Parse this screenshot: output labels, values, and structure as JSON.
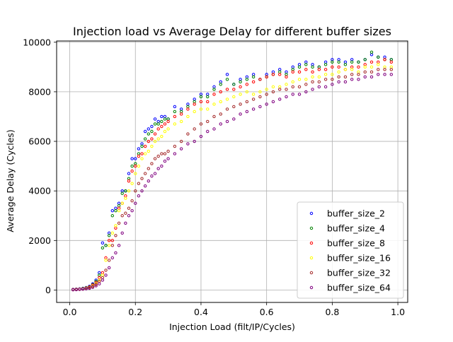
{
  "chart_data": {
    "type": "scatter",
    "title": "Injection load vs Average Delay for different buffer sizes",
    "xlabel": "Injection Load (filt/IP/Cycles)",
    "ylabel": "Average Delay (Cycles)",
    "xlim": [
      -0.04,
      1.03
    ],
    "ylim": [
      -500,
      10050
    ],
    "xticks": [
      0.0,
      0.2,
      0.4,
      0.6,
      0.8,
      1.0
    ],
    "xtick_labels": [
      "0.0",
      "0.2",
      "0.4",
      "0.6",
      "0.8",
      "1.0"
    ],
    "yticks": [
      0,
      2000,
      4000,
      6000,
      8000,
      10000
    ],
    "ytick_labels": [
      "0",
      "2000",
      "4000",
      "6000",
      "8000",
      "10000"
    ],
    "grid": true,
    "legend_position": "lower-right",
    "series": [
      {
        "name": "buffer_size_2",
        "color": "#0000ff",
        "x": [
          0.01,
          0.02,
          0.03,
          0.04,
          0.05,
          0.06,
          0.07,
          0.08,
          0.09,
          0.1,
          0.11,
          0.12,
          0.13,
          0.14,
          0.15,
          0.16,
          0.17,
          0.18,
          0.19,
          0.2,
          0.21,
          0.22,
          0.23,
          0.24,
          0.25,
          0.26,
          0.27,
          0.28,
          0.29,
          0.3,
          0.32,
          0.34,
          0.36,
          0.38,
          0.4,
          0.42,
          0.44,
          0.46,
          0.48,
          0.5,
          0.52,
          0.54,
          0.56,
          0.58,
          0.6,
          0.62,
          0.64,
          0.66,
          0.68,
          0.7,
          0.72,
          0.74,
          0.76,
          0.78,
          0.8,
          0.82,
          0.84,
          0.86,
          0.88,
          0.9,
          0.92,
          0.94,
          0.96,
          0.98
        ],
        "y": [
          30,
          40,
          50,
          70,
          100,
          150,
          250,
          400,
          700,
          1900,
          1800,
          2300,
          3200,
          3300,
          3500,
          4000,
          4000,
          4700,
          5300,
          5300,
          5700,
          5900,
          6400,
          6500,
          6600,
          6900,
          6800,
          7000,
          7000,
          6900,
          7400,
          7300,
          7500,
          7700,
          7900,
          7900,
          8200,
          8400,
          8700,
          8300,
          8500,
          8600,
          8700,
          8500,
          8700,
          8800,
          8900,
          8800,
          9000,
          9100,
          9200,
          9100,
          9000,
          9200,
          9300,
          9300,
          9200,
          9300,
          9200,
          9300,
          9500,
          9400,
          9400,
          9300
        ]
      },
      {
        "name": "buffer_size_4",
        "color": "#008000",
        "x": [
          0.01,
          0.02,
          0.03,
          0.04,
          0.05,
          0.06,
          0.07,
          0.08,
          0.09,
          0.1,
          0.11,
          0.12,
          0.13,
          0.14,
          0.15,
          0.16,
          0.17,
          0.18,
          0.19,
          0.2,
          0.21,
          0.22,
          0.23,
          0.24,
          0.25,
          0.26,
          0.27,
          0.28,
          0.29,
          0.3,
          0.32,
          0.34,
          0.36,
          0.38,
          0.4,
          0.42,
          0.44,
          0.46,
          0.48,
          0.5,
          0.52,
          0.54,
          0.56,
          0.58,
          0.6,
          0.62,
          0.64,
          0.66,
          0.68,
          0.7,
          0.72,
          0.74,
          0.76,
          0.78,
          0.8,
          0.82,
          0.84,
          0.86,
          0.88,
          0.9,
          0.92,
          0.94,
          0.96,
          0.98
        ],
        "y": [
          20,
          30,
          40,
          60,
          90,
          130,
          220,
          350,
          600,
          1700,
          1800,
          2200,
          3000,
          3200,
          3400,
          3900,
          4000,
          4500,
          5000,
          5100,
          5500,
          5800,
          6100,
          6300,
          6400,
          6700,
          6700,
          6800,
          6900,
          6900,
          7200,
          7200,
          7400,
          7600,
          7800,
          7800,
          8100,
          8300,
          8500,
          8300,
          8400,
          8500,
          8600,
          8500,
          8600,
          8700,
          8800,
          8700,
          8900,
          9000,
          9100,
          9000,
          9000,
          9100,
          9200,
          9200,
          9100,
          9200,
          9200,
          9300,
          9600,
          9400,
          9300,
          9300
        ]
      },
      {
        "name": "buffer_size_8",
        "color": "#ff0000",
        "x": [
          0.01,
          0.02,
          0.03,
          0.04,
          0.05,
          0.06,
          0.07,
          0.08,
          0.09,
          0.1,
          0.11,
          0.12,
          0.13,
          0.14,
          0.15,
          0.16,
          0.17,
          0.18,
          0.19,
          0.2,
          0.21,
          0.22,
          0.23,
          0.24,
          0.25,
          0.26,
          0.27,
          0.28,
          0.29,
          0.3,
          0.32,
          0.34,
          0.36,
          0.38,
          0.4,
          0.42,
          0.44,
          0.46,
          0.48,
          0.5,
          0.52,
          0.54,
          0.56,
          0.58,
          0.6,
          0.62,
          0.64,
          0.66,
          0.68,
          0.7,
          0.72,
          0.74,
          0.76,
          0.78,
          0.8,
          0.82,
          0.84,
          0.86,
          0.88,
          0.9,
          0.92,
          0.94,
          0.96,
          0.98
        ],
        "y": [
          20,
          30,
          40,
          50,
          80,
          120,
          200,
          300,
          500,
          700,
          1300,
          2000,
          2000,
          2500,
          3300,
          3500,
          3800,
          4400,
          4800,
          5000,
          5400,
          5500,
          5800,
          6000,
          6100,
          6300,
          6500,
          6600,
          6700,
          6800,
          7000,
          7100,
          7300,
          7500,
          7600,
          7600,
          7900,
          8000,
          8100,
          8100,
          8200,
          8300,
          8400,
          8500,
          8600,
          8700,
          8700,
          8600,
          8800,
          8800,
          8900,
          8800,
          8900,
          8900,
          9000,
          9000,
          8900,
          9000,
          9000,
          9100,
          9200,
          9200,
          9300,
          9200
        ]
      },
      {
        "name": "buffer_size_16",
        "color": "#ffff00",
        "x": [
          0.01,
          0.02,
          0.03,
          0.04,
          0.05,
          0.06,
          0.07,
          0.08,
          0.09,
          0.1,
          0.11,
          0.12,
          0.13,
          0.14,
          0.15,
          0.16,
          0.17,
          0.18,
          0.19,
          0.2,
          0.21,
          0.22,
          0.23,
          0.24,
          0.25,
          0.26,
          0.27,
          0.28,
          0.29,
          0.3,
          0.32,
          0.34,
          0.36,
          0.38,
          0.4,
          0.42,
          0.44,
          0.46,
          0.48,
          0.5,
          0.52,
          0.54,
          0.56,
          0.58,
          0.6,
          0.62,
          0.64,
          0.66,
          0.68,
          0.7,
          0.72,
          0.74,
          0.76,
          0.78,
          0.8,
          0.82,
          0.84,
          0.86,
          0.88,
          0.9,
          0.92,
          0.94,
          0.96,
          0.98
        ],
        "y": [
          20,
          25,
          35,
          45,
          70,
          100,
          160,
          250,
          400,
          600,
          1200,
          1800,
          2300,
          2600,
          3200,
          3500,
          3700,
          4000,
          4300,
          4700,
          5000,
          5300,
          5500,
          5600,
          5800,
          6000,
          6100,
          6200,
          6400,
          6500,
          6700,
          6800,
          7000,
          7200,
          7300,
          7300,
          7500,
          7600,
          7700,
          7800,
          7900,
          8000,
          7900,
          8000,
          8100,
          8200,
          8200,
          8300,
          8400,
          8500,
          8500,
          8600,
          8600,
          8700,
          8700,
          8800,
          8900,
          8900,
          8800,
          9000,
          9000,
          9100,
          9000,
          9000
        ]
      },
      {
        "name": "buffer_size_32",
        "color": "#a52a2a",
        "x": [
          0.01,
          0.02,
          0.03,
          0.04,
          0.05,
          0.06,
          0.07,
          0.08,
          0.09,
          0.1,
          0.11,
          0.12,
          0.13,
          0.14,
          0.15,
          0.16,
          0.17,
          0.18,
          0.19,
          0.2,
          0.21,
          0.22,
          0.23,
          0.24,
          0.25,
          0.26,
          0.27,
          0.28,
          0.29,
          0.3,
          0.32,
          0.34,
          0.36,
          0.38,
          0.4,
          0.42,
          0.44,
          0.46,
          0.48,
          0.5,
          0.52,
          0.54,
          0.56,
          0.58,
          0.6,
          0.62,
          0.64,
          0.66,
          0.68,
          0.7,
          0.72,
          0.74,
          0.76,
          0.78,
          0.8,
          0.82,
          0.84,
          0.86,
          0.88,
          0.9,
          0.92,
          0.94,
          0.96,
          0.98
        ],
        "y": [
          15,
          20,
          30,
          40,
          60,
          90,
          140,
          220,
          350,
          500,
          800,
          1200,
          1800,
          2200,
          2700,
          3000,
          3100,
          3300,
          3600,
          4000,
          4300,
          4500,
          4700,
          4900,
          5100,
          5300,
          5400,
          5500,
          5500,
          5600,
          5800,
          6000,
          6300,
          6500,
          6700,
          6800,
          7000,
          7100,
          7300,
          7400,
          7500,
          7600,
          7700,
          7800,
          7900,
          8000,
          8100,
          8100,
          8200,
          8200,
          8300,
          8400,
          8400,
          8500,
          8500,
          8600,
          8600,
          8700,
          8700,
          8800,
          8800,
          8900,
          8900,
          8900
        ]
      },
      {
        "name": "buffer_size_64",
        "color": "#800080",
        "x": [
          0.01,
          0.02,
          0.03,
          0.04,
          0.05,
          0.06,
          0.07,
          0.08,
          0.09,
          0.1,
          0.11,
          0.12,
          0.13,
          0.14,
          0.15,
          0.16,
          0.17,
          0.18,
          0.19,
          0.2,
          0.21,
          0.22,
          0.23,
          0.24,
          0.25,
          0.26,
          0.27,
          0.28,
          0.29,
          0.3,
          0.32,
          0.34,
          0.36,
          0.38,
          0.4,
          0.42,
          0.44,
          0.46,
          0.48,
          0.5,
          0.52,
          0.54,
          0.56,
          0.58,
          0.6,
          0.62,
          0.64,
          0.66,
          0.68,
          0.7,
          0.72,
          0.74,
          0.76,
          0.78,
          0.8,
          0.82,
          0.84,
          0.86,
          0.88,
          0.9,
          0.92,
          0.94,
          0.96,
          0.98
        ],
        "y": [
          10,
          15,
          25,
          35,
          50,
          70,
          110,
          170,
          250,
          400,
          600,
          900,
          1300,
          1500,
          1800,
          2300,
          2700,
          3000,
          3200,
          3500,
          3800,
          4000,
          4200,
          4400,
          4600,
          4700,
          4900,
          5000,
          5200,
          5300,
          5500,
          5700,
          5900,
          6000,
          6200,
          6400,
          6500,
          6700,
          6800,
          6900,
          7100,
          7200,
          7300,
          7400,
          7500,
          7600,
          7700,
          7800,
          7900,
          7900,
          8000,
          8100,
          8200,
          8200,
          8300,
          8400,
          8400,
          8500,
          8500,
          8600,
          8600,
          8700,
          8700,
          8700
        ]
      }
    ]
  }
}
